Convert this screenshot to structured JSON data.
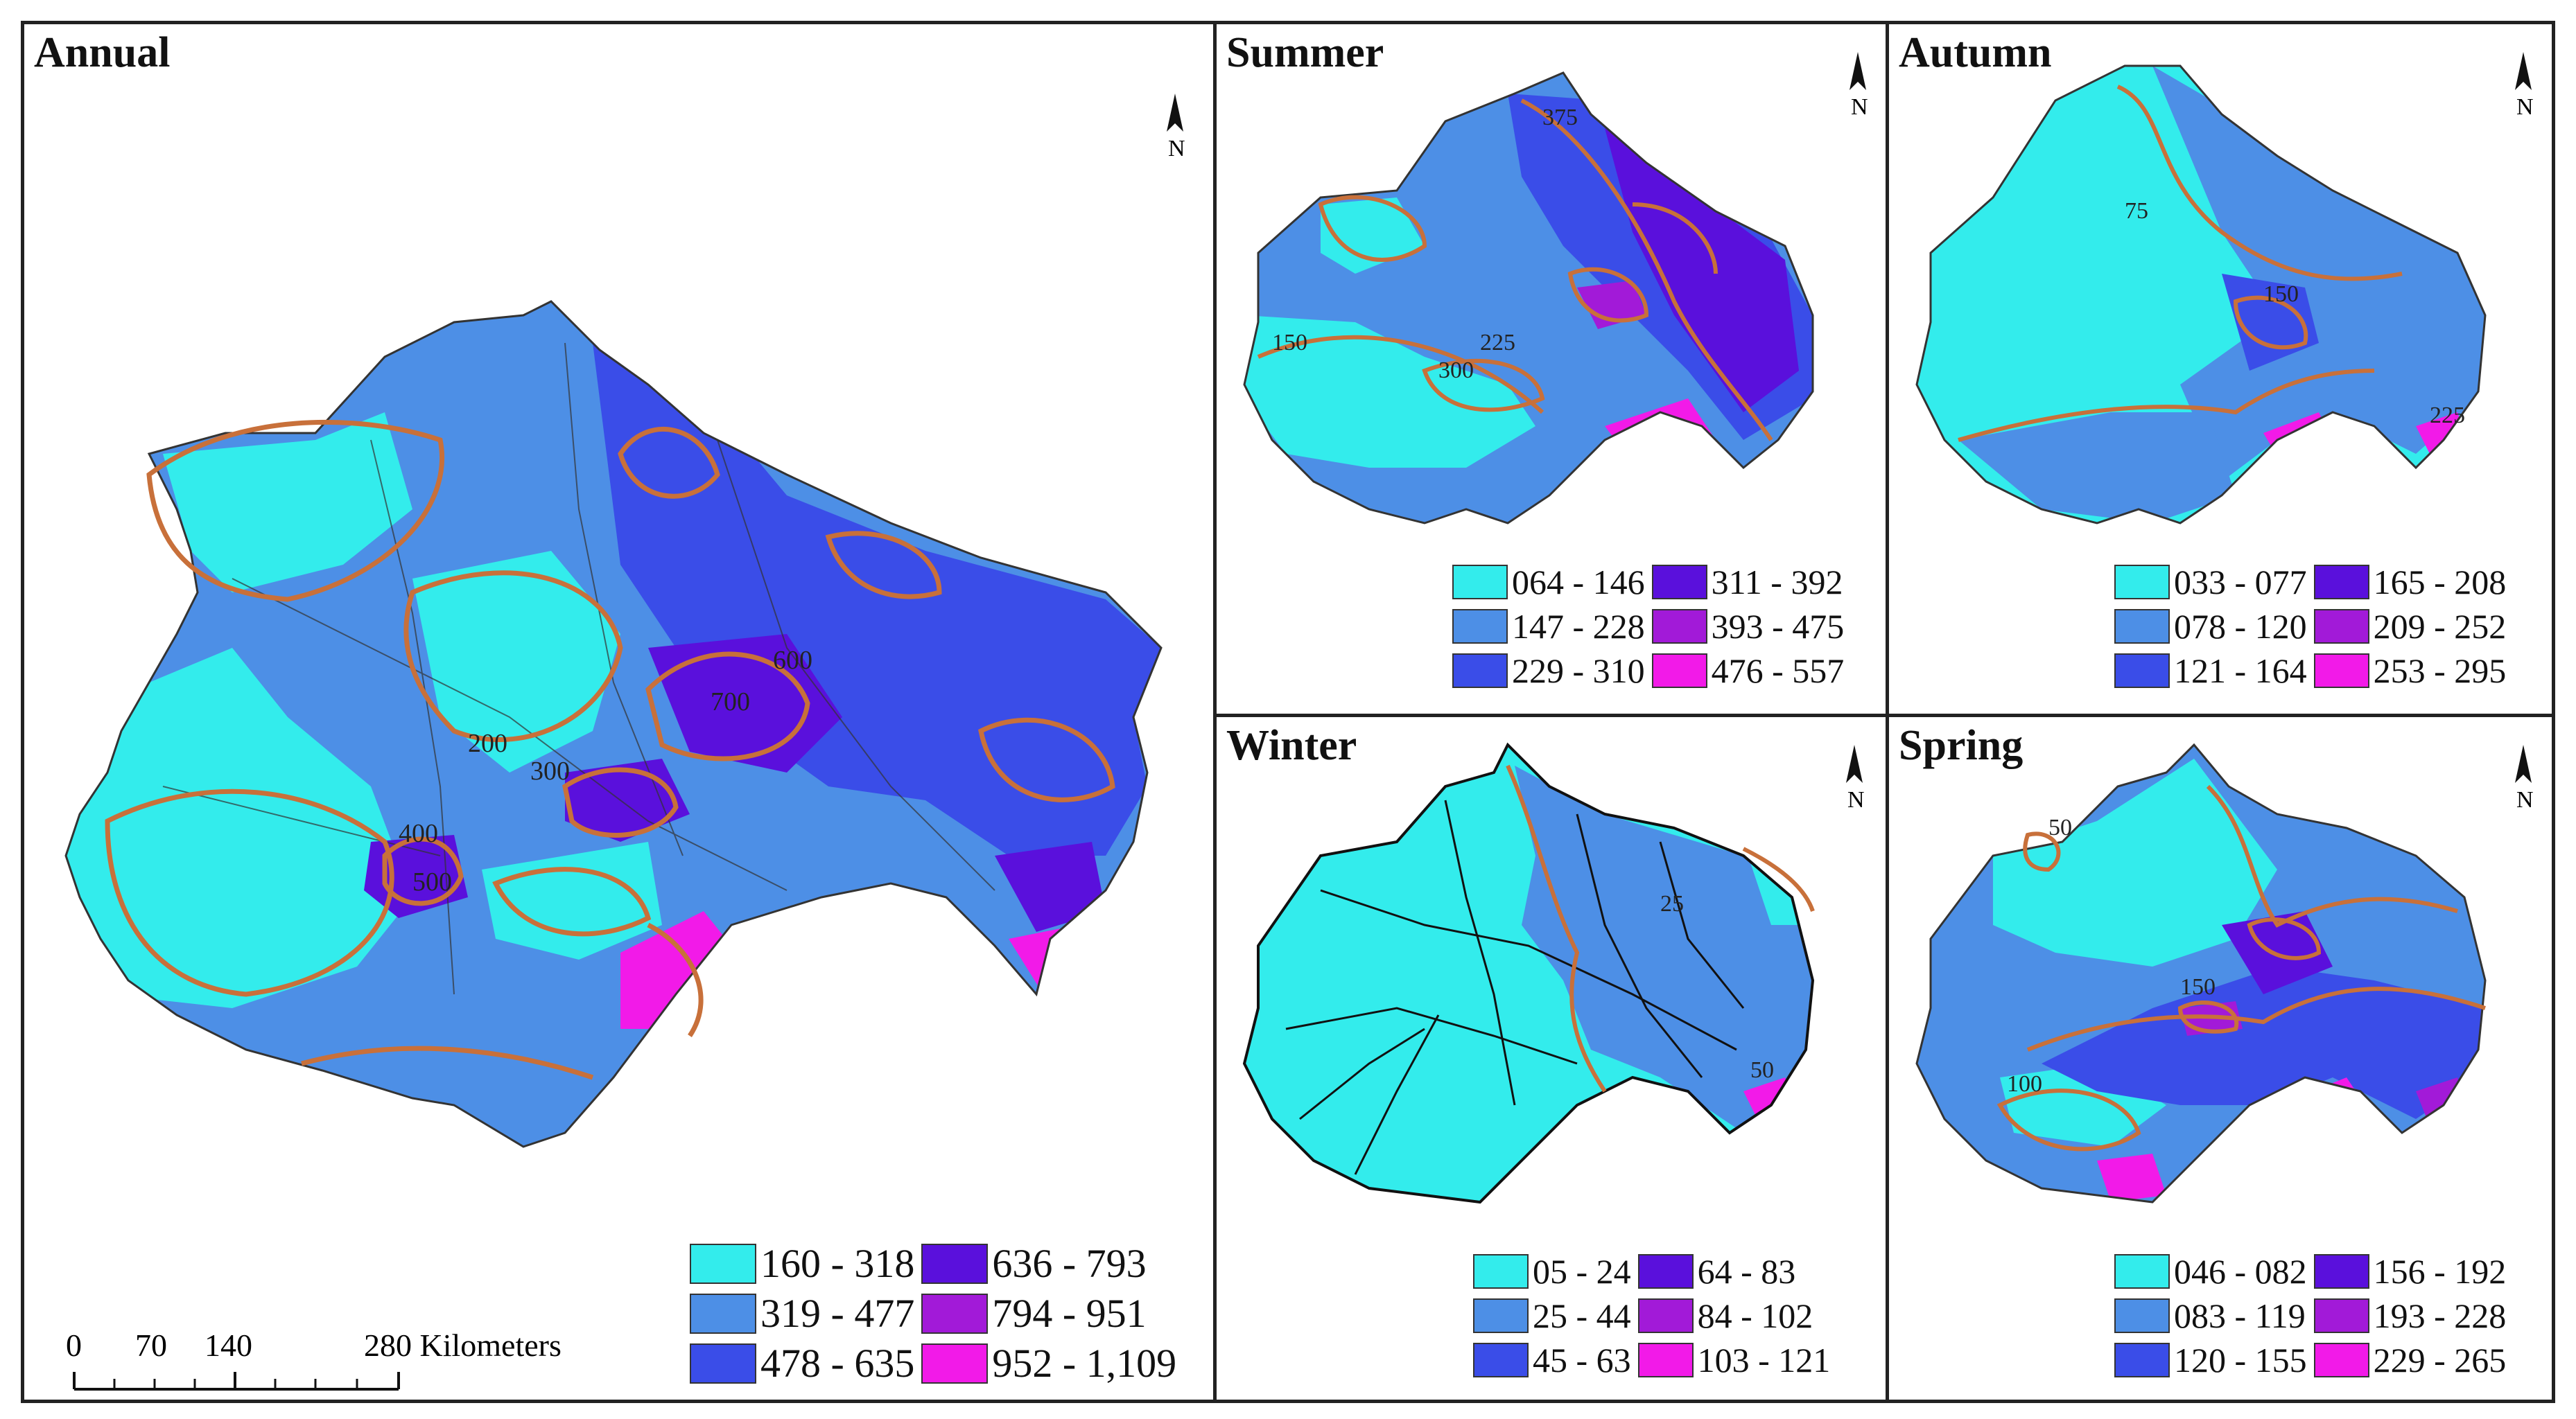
{
  "panels": {
    "annual": {
      "title": "Annual",
      "legend": [
        {
          "label": "160 - 318",
          "color": "#33ecec"
        },
        {
          "label": "319 - 477",
          "color": "#4d8fe6"
        },
        {
          "label": "478 - 635",
          "color": "#3a4de8"
        },
        {
          "label": "636 - 793",
          "color": "#5a10dc"
        },
        {
          "label": "794 - 951",
          "color": "#a21ad8"
        },
        {
          "label": "952 - 1,109",
          "color": "#f21ae8"
        }
      ],
      "contour_labels": [
        "200",
        "300",
        "400",
        "500",
        "600",
        "700"
      ]
    },
    "summer": {
      "title": "Summer",
      "legend": [
        {
          "label": "064 - 146",
          "color": "#33ecec"
        },
        {
          "label": "147 - 228",
          "color": "#4d8fe6"
        },
        {
          "label": "229 - 310",
          "color": "#3a4de8"
        },
        {
          "label": "311 - 392",
          "color": "#5a10dc"
        },
        {
          "label": "393 - 475",
          "color": "#a21ad8"
        },
        {
          "label": "476 - 557",
          "color": "#f21ae8"
        }
      ],
      "contour_labels": [
        "150",
        "225",
        "300",
        "375"
      ]
    },
    "autumn": {
      "title": "Autumn",
      "legend": [
        {
          "label": "033 - 077",
          "color": "#33ecec"
        },
        {
          "label": "078 - 120",
          "color": "#4d8fe6"
        },
        {
          "label": "121 - 164",
          "color": "#3a4de8"
        },
        {
          "label": "165 - 208",
          "color": "#5a10dc"
        },
        {
          "label": "209 - 252",
          "color": "#a21ad8"
        },
        {
          "label": "253 - 295",
          "color": "#f21ae8"
        }
      ],
      "contour_labels": [
        "75",
        "150",
        "225"
      ]
    },
    "winter": {
      "title": "Winter",
      "legend": [
        {
          "label": "05 - 24",
          "color": "#33ecec"
        },
        {
          "label": "25 - 44",
          "color": "#4d8fe6"
        },
        {
          "label": "45 - 63",
          "color": "#3a4de8"
        },
        {
          "label": "64 - 83",
          "color": "#5a10dc"
        },
        {
          "label": "84 - 102",
          "color": "#a21ad8"
        },
        {
          "label": "103 - 121",
          "color": "#f21ae8"
        }
      ],
      "contour_labels": [
        "25",
        "50"
      ]
    },
    "spring": {
      "title": "Spring",
      "legend": [
        {
          "label": "046 - 082",
          "color": "#33ecec"
        },
        {
          "label": "083 - 119",
          "color": "#4d8fe6"
        },
        {
          "label": "120 - 155",
          "color": "#3a4de8"
        },
        {
          "label": "156 - 192",
          "color": "#5a10dc"
        },
        {
          "label": "193 - 228",
          "color": "#a21ad8"
        },
        {
          "label": "229 - 265",
          "color": "#f21ae8"
        }
      ],
      "contour_labels": [
        "50",
        "100",
        "150"
      ]
    }
  },
  "scale_bar": {
    "ticks": [
      "0",
      "70",
      "140",
      "280 Kilometers"
    ]
  },
  "north_arrow": {
    "label": "N",
    "icon": "north-arrow-icon"
  },
  "colors": {
    "contour": "#c8703a",
    "border": "#222222"
  }
}
